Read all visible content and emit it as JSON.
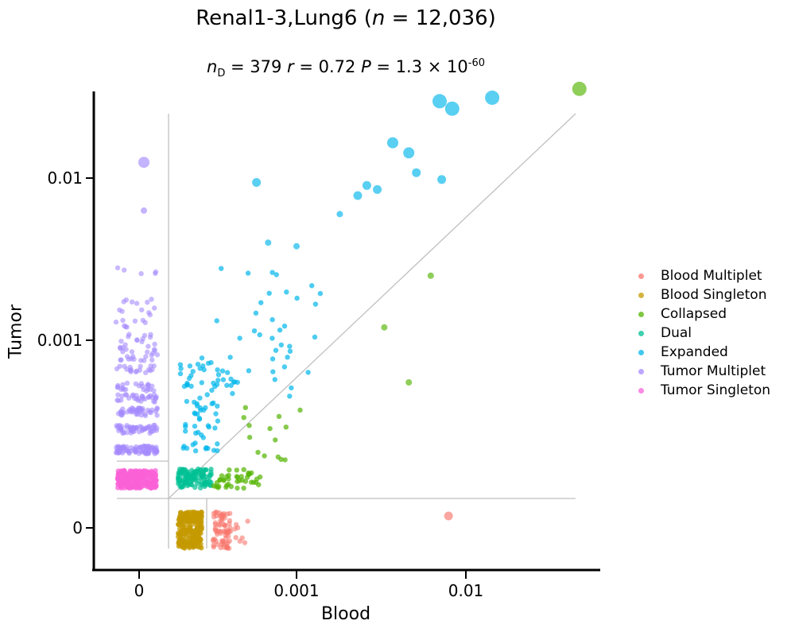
{
  "chart_data": {
    "type": "scatter",
    "title_main": "Renal1-3,Lung6 (",
    "title_n": "n",
    "title_eq": " = 12,036)",
    "stats": {
      "nD_sym": "n",
      "nD_sub": "D",
      "nD_val": " = 379  ",
      "r_sym": "r",
      "r_val": " = 0.72  ",
      "p_sym": "P",
      "p_val": " = 1.3 × 10",
      "p_exp": "-60"
    },
    "xlabel": "Blood",
    "ylabel": "Tumor",
    "x_ticks": [
      "0",
      "0.001",
      "0.01"
    ],
    "y_ticks": [
      "0",
      "0.001",
      "0.01"
    ],
    "scale": "symlog",
    "grid": false,
    "legend_position": "right",
    "legend": [
      {
        "name": "Blood Multiplet",
        "color": "#f8766d"
      },
      {
        "name": "Blood Singleton",
        "color": "#c49a00"
      },
      {
        "name": "Collapsed",
        "color": "#53b400"
      },
      {
        "name": "Dual",
        "color": "#00c094"
      },
      {
        "name": "Expanded",
        "color": "#00b6eb"
      },
      {
        "name": "Tumor Multiplet",
        "color": "#a58aff"
      },
      {
        "name": "Tumor Singleton",
        "color": "#fb61d7"
      }
    ],
    "highlight_points": [
      {
        "category": "Expanded",
        "blood": 0.00058,
        "tumor": 0.0094
      },
      {
        "category": "Expanded",
        "blood": 0.00068,
        "tumor": 0.004
      },
      {
        "category": "Expanded",
        "blood": 0.001,
        "tumor": 0.0038
      },
      {
        "category": "Expanded",
        "blood": 0.0018,
        "tumor": 0.006
      },
      {
        "category": "Expanded",
        "blood": 0.0023,
        "tumor": 0.0078
      },
      {
        "category": "Expanded",
        "blood": 0.0026,
        "tumor": 0.009
      },
      {
        "category": "Expanded",
        "blood": 0.003,
        "tumor": 0.0085
      },
      {
        "category": "Expanded",
        "blood": 0.0037,
        "tumor": 0.0165
      },
      {
        "category": "Expanded",
        "blood": 0.0046,
        "tumor": 0.0143
      },
      {
        "category": "Expanded",
        "blood": 0.0051,
        "tumor": 0.0108
      },
      {
        "category": "Expanded",
        "blood": 0.007,
        "tumor": 0.0298
      },
      {
        "category": "Expanded",
        "blood": 0.0083,
        "tumor": 0.0268
      },
      {
        "category": "Expanded",
        "blood": 0.0072,
        "tumor": 0.0098
      },
      {
        "category": "Expanded",
        "blood": 0.0143,
        "tumor": 0.0313
      },
      {
        "category": "Collapsed",
        "blood": 0.0468,
        "tumor": 0.0355
      },
      {
        "category": "Collapsed",
        "blood": 0.0062,
        "tumor": 0.0025
      },
      {
        "category": "Collapsed",
        "blood": 0.0033,
        "tumor": 0.0012
      },
      {
        "category": "Collapsed",
        "blood": 0.0046,
        "tumor": 0.00055
      },
      {
        "category": "Blood Multiplet",
        "blood": 0.0079,
        "tumor": 0
      },
      {
        "category": "Tumor Multiplet",
        "blood": 0,
        "tumor": 0.0125
      },
      {
        "category": "Tumor Multiplet",
        "blood": 0,
        "tumor": 0.0063
      }
    ]
  }
}
